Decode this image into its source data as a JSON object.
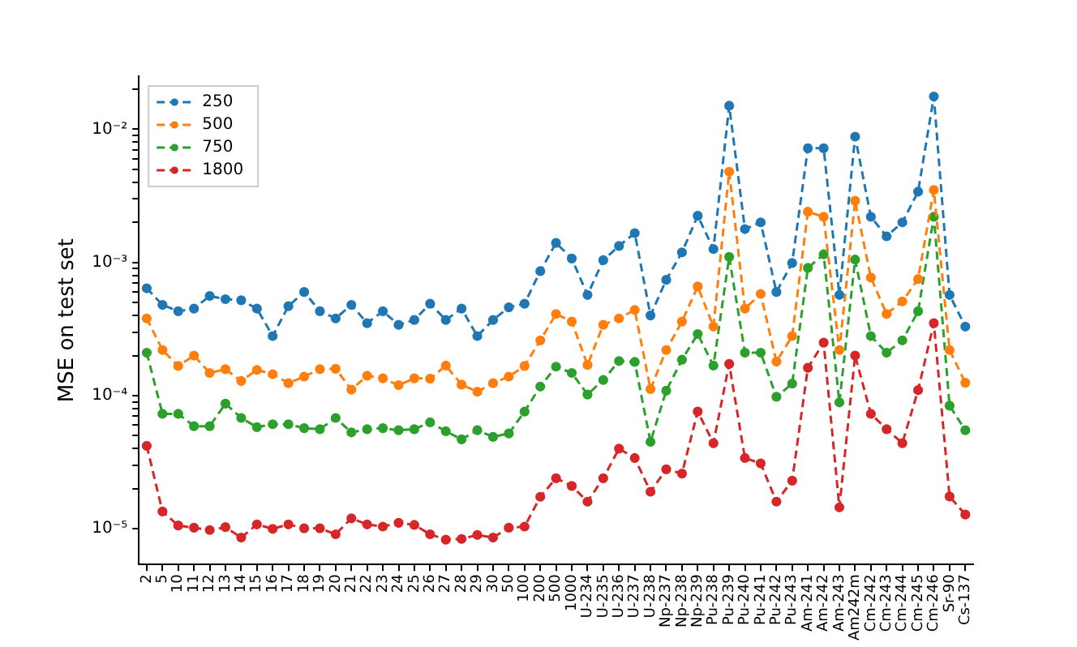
{
  "chart_data": {
    "type": "line",
    "ylabel": "MSE on test set",
    "log": "y",
    "marker": "circle",
    "line_style": "dashed",
    "legend": "top left",
    "grid": false,
    "categories": [
      "2",
      "5",
      "10",
      "11",
      "12",
      "13",
      "14",
      "15",
      "16",
      "17",
      "18",
      "19",
      "20",
      "21",
      "22",
      "23",
      "24",
      "25",
      "26",
      "27",
      "28",
      "29",
      "30",
      "50",
      "100",
      "200",
      "500",
      "1000",
      "U-234",
      "U-235",
      "U-236",
      "U-237",
      "U-238",
      "Np-237",
      "Np-238",
      "Np-239",
      "Pu-238",
      "Pu-239",
      "Pu-240",
      "Pu-241",
      "Pu-242",
      "Pu-243",
      "Am-241",
      "Am-242",
      "Am-243",
      "Am242m",
      "Cm-242",
      "Cm-243",
      "Cm-244",
      "Cm-245",
      "Cm-246",
      "Sr-90",
      "Cs-137"
    ],
    "ylim": [
      5.4e-06,
      0.025
    ],
    "yticks": [
      {
        "value": 1e-05,
        "label": "10⁻⁵"
      },
      {
        "value": 2e-05,
        "label": null
      },
      {
        "value": 3e-05,
        "label": null
      },
      {
        "value": 4e-05,
        "label": null
      },
      {
        "value": 5e-05,
        "label": null
      },
      {
        "value": 6e-05,
        "label": null
      },
      {
        "value": 7e-05,
        "label": null
      },
      {
        "value": 8e-05,
        "label": null
      },
      {
        "value": 9e-05,
        "label": null
      },
      {
        "value": 0.0001,
        "label": "10⁻⁴"
      },
      {
        "value": 0.0002,
        "label": null
      },
      {
        "value": 0.0003,
        "label": null
      },
      {
        "value": 0.0004,
        "label": null
      },
      {
        "value": 0.0005,
        "label": null
      },
      {
        "value": 0.0006,
        "label": null
      },
      {
        "value": 0.0007,
        "label": null
      },
      {
        "value": 0.0008,
        "label": null
      },
      {
        "value": 0.0009,
        "label": null
      },
      {
        "value": 0.001,
        "label": "10⁻³"
      },
      {
        "value": 0.002,
        "label": null
      },
      {
        "value": 0.003,
        "label": null
      },
      {
        "value": 0.004,
        "label": null
      },
      {
        "value": 0.005,
        "label": null
      },
      {
        "value": 0.006,
        "label": null
      },
      {
        "value": 0.007,
        "label": null
      },
      {
        "value": 0.008,
        "label": null
      },
      {
        "value": 0.009,
        "label": null
      },
      {
        "value": 0.01,
        "label": "10⁻²"
      },
      {
        "value": 0.02,
        "label": null
      }
    ],
    "series": [
      {
        "name": "250",
        "color": "#1f77b4",
        "values": [
          0.00064,
          0.00048,
          0.00043,
          0.00045,
          0.00056,
          0.00053,
          0.00052,
          0.00045,
          0.00028,
          0.00047,
          0.0006,
          0.00043,
          0.00038,
          0.00048,
          0.00035,
          0.00043,
          0.00034,
          0.00037,
          0.00049,
          0.00037,
          0.00045,
          0.00028,
          0.00037,
          0.00046,
          0.00049,
          0.00086,
          0.0014,
          0.00107,
          0.00057,
          0.00104,
          0.00133,
          0.00166,
          0.0004,
          0.00074,
          0.00119,
          0.00224,
          0.00126,
          0.015,
          0.00178,
          0.002,
          0.0006,
          0.00099,
          0.0072,
          0.0072,
          0.00057,
          0.0088,
          0.0022,
          0.00157,
          0.002,
          0.0034,
          0.0176,
          0.00057,
          0.00033
        ]
      },
      {
        "name": "500",
        "color": "#ff7f0e",
        "values": [
          0.00038,
          0.00022,
          0.000167,
          0.0002,
          0.000148,
          0.000158,
          0.000129,
          0.000156,
          0.000145,
          0.000124,
          0.000139,
          0.000158,
          0.000159,
          0.000111,
          0.000141,
          0.000135,
          0.00012,
          0.000135,
          0.000134,
          0.000168,
          0.000121,
          0.000107,
          0.000124,
          0.000139,
          0.000167,
          0.00026,
          0.00041,
          0.00036,
          0.00017,
          0.00034,
          0.00038,
          0.00044,
          0.000112,
          0.00022,
          0.00036,
          0.00066,
          0.00033,
          0.0048,
          0.00045,
          0.00058,
          0.00018,
          0.00028,
          0.0024,
          0.0022,
          0.00022,
          0.0029,
          0.00077,
          0.00041,
          0.00051,
          0.00075,
          0.0035,
          0.00022,
          0.000125
        ]
      },
      {
        "name": "750",
        "color": "#2ca02c",
        "values": [
          0.00021,
          7.3e-05,
          7.3e-05,
          5.9e-05,
          5.9e-05,
          8.7e-05,
          6.8e-05,
          5.8e-05,
          6.1e-05,
          6.1e-05,
          5.7e-05,
          5.6e-05,
          6.8e-05,
          5.3e-05,
          5.6e-05,
          5.7e-05,
          5.5e-05,
          5.6e-05,
          6.3e-05,
          5.4e-05,
          4.7e-05,
          5.5e-05,
          4.9e-05,
          5.2e-05,
          7.6e-05,
          0.000117,
          0.000165,
          0.000148,
          0.000102,
          0.000131,
          0.000182,
          0.000179,
          4.5e-05,
          0.000109,
          0.000186,
          0.00029,
          0.000168,
          0.0011,
          0.00021,
          0.00021,
          9.8e-05,
          0.000123,
          0.00091,
          0.00115,
          8.9e-05,
          0.00105,
          0.00028,
          0.00021,
          0.00026,
          0.00043,
          0.0022,
          8.4e-05,
          5.5e-05
        ]
      },
      {
        "name": "1800",
        "color": "#d62728",
        "values": [
          4.2e-05,
          1.35e-05,
          1.06e-05,
          1.02e-05,
          9.8e-06,
          1.03e-05,
          8.6e-06,
          1.08e-05,
          1e-05,
          1.08e-05,
          1.01e-05,
          1.01e-05,
          9.1e-06,
          1.2e-05,
          1.08e-05,
          1.04e-05,
          1.11e-05,
          1.07e-05,
          9.1e-06,
          8.3e-06,
          8.4e-06,
          9e-06,
          8.6e-06,
          1.02e-05,
          1.04e-05,
          1.74e-05,
          2.4e-05,
          2.1e-05,
          1.6e-05,
          2.4e-05,
          4e-05,
          3.4e-05,
          1.9e-05,
          2.8e-05,
          2.6e-05,
          7.6e-05,
          4.4e-05,
          0.000173,
          3.4e-05,
          3.1e-05,
          1.6e-05,
          2.3e-05,
          0.000162,
          0.00025,
          1.45e-05,
          0.0002,
          7.3e-05,
          5.6e-05,
          4.4e-05,
          0.00011,
          0.00035,
          1.75e-05,
          1.28e-05
        ]
      }
    ]
  }
}
